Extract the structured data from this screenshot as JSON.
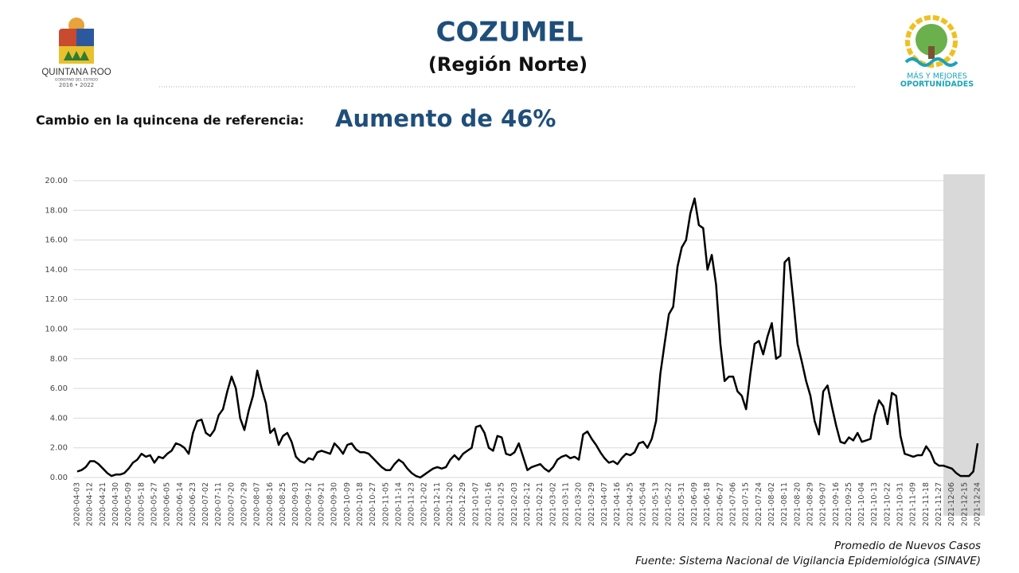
{
  "header": {
    "title": "COZUMEL",
    "subtitle": "(Región Norte)",
    "change_label": "Cambio en la quincena de referencia:",
    "change_value": "Aumento de 46%"
  },
  "logos": {
    "left_name": "QUINTANA ROO",
    "left_sub": "GOBIERNO DEL ESTADO",
    "left_years": "2016 • 2022",
    "right_top": "MÁS Y MEJORES",
    "right_bottom": "OPORTUNIDADES"
  },
  "chart_data": {
    "type": "line",
    "color": "#000000",
    "grid": true,
    "ylim": [
      0,
      20
    ],
    "yticks": [
      {
        "value": 0,
        "label": "0.00"
      },
      {
        "value": 2,
        "label": "2.00"
      },
      {
        "value": 4,
        "label": "4.00"
      },
      {
        "value": 6,
        "label": "6.00"
      },
      {
        "value": 8,
        "label": "8.00"
      },
      {
        "value": 10,
        "label": "10.00"
      },
      {
        "value": 12,
        "label": "12.00"
      },
      {
        "value": 14,
        "label": "14.00"
      },
      {
        "value": 16,
        "label": "16.00"
      },
      {
        "value": 18,
        "label": "18.00"
      },
      {
        "value": 20,
        "label": "20.00"
      }
    ],
    "categories": [
      "2020-04-03",
      null,
      null,
      "2020-04-12",
      null,
      null,
      "2020-04-21",
      null,
      null,
      "2020-04-30",
      null,
      null,
      "2020-05-09",
      null,
      null,
      "2020-05-18",
      null,
      null,
      "2020-05-27",
      null,
      null,
      "2020-06-05",
      null,
      null,
      "2020-06-14",
      null,
      null,
      "2020-06-23",
      null,
      null,
      "2020-07-02",
      null,
      null,
      "2020-07-11",
      null,
      null,
      "2020-07-20",
      null,
      null,
      "2020-07-29",
      null,
      null,
      "2020-08-07",
      null,
      null,
      "2020-08-16",
      null,
      null,
      "2020-08-25",
      null,
      null,
      "2020-09-03",
      null,
      null,
      "2020-09-12",
      null,
      null,
      "2020-09-21",
      null,
      null,
      "2020-09-30",
      null,
      null,
      "2020-10-09",
      null,
      null,
      "2020-10-18",
      null,
      null,
      "2020-10-27",
      null,
      null,
      "2020-11-05",
      null,
      null,
      "2020-11-14",
      null,
      null,
      "2020-11-23",
      null,
      null,
      "2020-12-02",
      null,
      null,
      "2020-12-11",
      null,
      null,
      "2020-12-20",
      null,
      null,
      "2020-12-29",
      null,
      null,
      "2021-01-07",
      null,
      null,
      "2021-01-16",
      null,
      null,
      "2021-01-25",
      null,
      null,
      "2021-02-03",
      null,
      null,
      "2021-02-12",
      null,
      null,
      "2021-02-21",
      null,
      null,
      "2021-03-02",
      null,
      null,
      "2021-03-11",
      null,
      null,
      "2021-03-20",
      null,
      null,
      "2021-03-29",
      null,
      null,
      "2021-04-07",
      null,
      null,
      "2021-04-16",
      null,
      null,
      "2021-04-25",
      null,
      null,
      "2021-05-04",
      null,
      null,
      "2021-05-13",
      null,
      null,
      "2021-05-22",
      null,
      null,
      "2021-05-31",
      null,
      null,
      "2021-06-09",
      null,
      null,
      "2021-06-18",
      null,
      null,
      "2021-06-27",
      null,
      null,
      "2021-07-06",
      null,
      null,
      "2021-07-15",
      null,
      null,
      "2021-07-24",
      null,
      null,
      "2021-08-02",
      null,
      null,
      "2021-08-11",
      null,
      null,
      "2021-08-20",
      null,
      null,
      "2021-08-29",
      null,
      null,
      "2021-09-07",
      null,
      null,
      "2021-09-16",
      null,
      null,
      "2021-09-25",
      null,
      null,
      "2021-10-04",
      null,
      null,
      "2021-10-13",
      null,
      null,
      "2021-10-22",
      null,
      null,
      "2021-10-31",
      null,
      null,
      "2021-11-09",
      null,
      null,
      "2021-11-18",
      null,
      null,
      "2021-11-27",
      null,
      null,
      "2021-12-06",
      null,
      null,
      "2021-12-15",
      null,
      null,
      "2021-12-24"
    ],
    "values": [
      0.4,
      0.5,
      0.7,
      1.1,
      1.1,
      0.9,
      0.6,
      0.3,
      0.1,
      0.2,
      0.2,
      0.3,
      0.6,
      1.0,
      1.2,
      1.6,
      1.4,
      1.5,
      1.0,
      1.4,
      1.3,
      1.6,
      1.8,
      2.3,
      2.2,
      2.0,
      1.6,
      3.0,
      3.8,
      3.9,
      3.0,
      2.8,
      3.2,
      4.2,
      4.6,
      5.8,
      6.8,
      6.0,
      4.0,
      3.2,
      4.5,
      5.5,
      7.2,
      6.0,
      5.0,
      3.0,
      3.3,
      2.2,
      2.8,
      3.0,
      2.4,
      1.4,
      1.1,
      1.0,
      1.3,
      1.2,
      1.7,
      1.8,
      1.7,
      1.6,
      2.3,
      2.0,
      1.6,
      2.2,
      2.3,
      1.9,
      1.7,
      1.7,
      1.6,
      1.3,
      1.0,
      0.7,
      0.5,
      0.5,
      0.9,
      1.2,
      1.0,
      0.6,
      0.3,
      0.1,
      0.0,
      0.2,
      0.4,
      0.6,
      0.7,
      0.6,
      0.7,
      1.2,
      1.5,
      1.2,
      1.6,
      1.8,
      2.0,
      3.4,
      3.5,
      3.0,
      2.0,
      1.8,
      2.8,
      2.7,
      1.6,
      1.5,
      1.7,
      2.3,
      1.4,
      0.5,
      0.7,
      0.8,
      0.9,
      0.6,
      0.4,
      0.7,
      1.2,
      1.4,
      1.5,
      1.3,
      1.4,
      1.2,
      2.9,
      3.1,
      2.6,
      2.2,
      1.7,
      1.3,
      1.0,
      1.1,
      0.9,
      1.3,
      1.6,
      1.5,
      1.7,
      2.3,
      2.4,
      2.0,
      2.6,
      3.8,
      7.0,
      9.0,
      11.0,
      11.5,
      14.2,
      15.5,
      16.0,
      17.8,
      18.8,
      17.0,
      16.8,
      14.0,
      15.0,
      13.0,
      9.0,
      6.5,
      6.8,
      6.8,
      5.8,
      5.5,
      4.6,
      7.0,
      9.0,
      9.2,
      8.3,
      9.5,
      10.4,
      8.0,
      8.2,
      14.5,
      14.8,
      12.0,
      9.0,
      7.8,
      6.5,
      5.5,
      3.8,
      2.9,
      5.8,
      6.2,
      4.8,
      3.5,
      2.4,
      2.3,
      2.7,
      2.5,
      3.0,
      2.4,
      2.5,
      2.6,
      4.2,
      5.2,
      4.8,
      3.6,
      5.7,
      5.5,
      2.8,
      1.6,
      1.5,
      1.4,
      1.5,
      1.5,
      2.1,
      1.7,
      1.0,
      0.8,
      0.8,
      0.7,
      0.6,
      0.3,
      0.1,
      0.1,
      0.1,
      0.4,
      2.3
    ]
  },
  "footer": {
    "measure": "Promedio de Nuevos Casos",
    "source": "Fuente: Sistema Nacional de Vigilancia Epidemiológica (SINAVE)"
  }
}
